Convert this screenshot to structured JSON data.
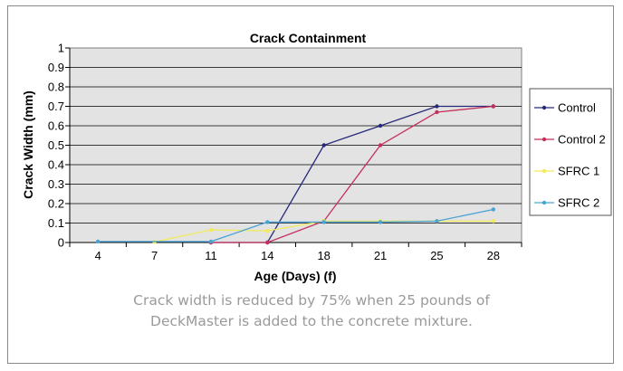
{
  "caption": {
    "line1": "Crack width is reduced by 75% when 25 pounds of",
    "line2": "DeckMaster is added to the concrete mixture."
  },
  "chart_data": {
    "type": "line",
    "title": "Crack Containment",
    "xlabel": "Age (Days) (f)",
    "ylabel": "Crack Width (mm)",
    "categories": [
      "4",
      "7",
      "11",
      "14",
      "18",
      "21",
      "25",
      "28"
    ],
    "ylim": [
      0,
      1
    ],
    "yticks": [
      "0",
      "0.1",
      "0.2",
      "0.3",
      "0.4",
      "0.5",
      "0.6",
      "0.7",
      "0.8",
      "0.9",
      "1"
    ],
    "grid": true,
    "legend_position": "right",
    "plot_background": "#e3e3e3",
    "series": [
      {
        "name": "Control",
        "color": "#27297a",
        "values": [
          null,
          null,
          0,
          0,
          0.5,
          0.6,
          0.7,
          0.7
        ]
      },
      {
        "name": "Control 2",
        "color": "#c4305b",
        "values": [
          null,
          null,
          0,
          0,
          0.11,
          0.5,
          0.67,
          0.7
        ]
      },
      {
        "name": "SFRC 1",
        "color": "#f2ea5a",
        "values": [
          null,
          0.003,
          0.065,
          0.06,
          0.11,
          0.11,
          0.11,
          0.11
        ]
      },
      {
        "name": "SFRC 2",
        "color": "#4aa3d4",
        "values": [
          0.005,
          null,
          0.005,
          0.105,
          0.105,
          0.105,
          0.11,
          0.17
        ]
      }
    ]
  }
}
